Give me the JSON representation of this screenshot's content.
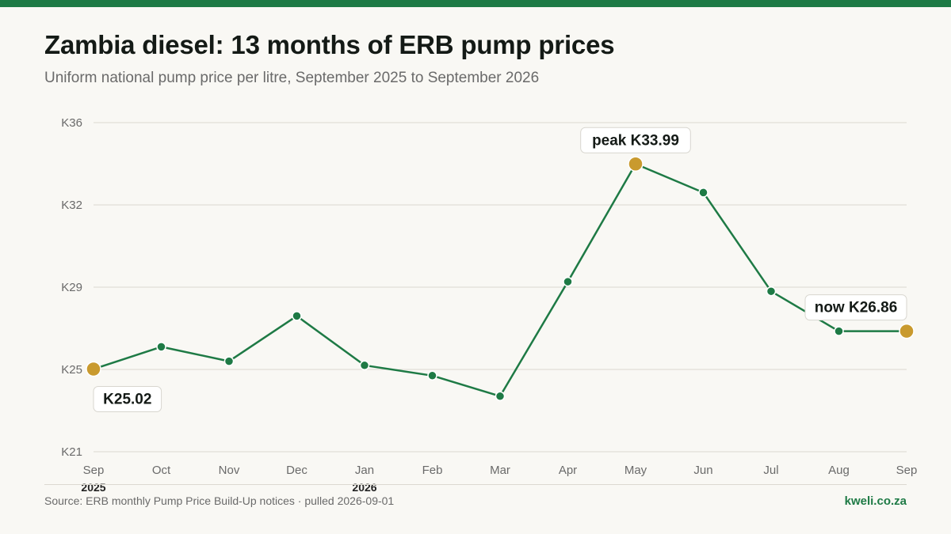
{
  "header": {
    "title": "Zambia diesel: 13 months of ERB pump prices",
    "subtitle": "Uniform national pump price per litre, September 2025 to September 2026"
  },
  "footer": {
    "source": "Source: ERB monthly Pump Price Build-Up notices · pulled 2026-09-01",
    "brand": "kweli.co.za"
  },
  "colors": {
    "line": "#1e7a45",
    "highlight": "#c99a2e",
    "grid": "#dcd9d0",
    "axis_text": "#6a6a6a"
  },
  "chart_data": {
    "type": "line",
    "title": "Zambia diesel: 13 months of ERB pump prices",
    "subtitle": "Uniform national pump price per litre, September 2025 to September 2026",
    "categories": [
      "Sep",
      "Oct",
      "Nov",
      "Dec",
      "Jan",
      "Feb",
      "Mar",
      "Apr",
      "May",
      "Jun",
      "Jul",
      "Aug",
      "Sep"
    ],
    "year_labels": [
      {
        "index": 0,
        "label": "2025"
      },
      {
        "index": 4,
        "label": "2026"
      }
    ],
    "series": [
      {
        "values": [
          25.02,
          26.1,
          25.4,
          27.6,
          25.2,
          24.7,
          23.7,
          29.2,
          33.99,
          32.6,
          28.8,
          26.86,
          26.86
        ]
      }
    ],
    "yticks": [
      21,
      25,
      29,
      32,
      36
    ],
    "ytick_labels": [
      "K21",
      "K25",
      "K29",
      "K32",
      "K36"
    ],
    "ylim": [
      21,
      36
    ],
    "grid": true,
    "annotations": [
      {
        "index": 0,
        "label": "K25.02",
        "position": "below"
      },
      {
        "index": 8,
        "label": "peak K33.99",
        "position": "above"
      },
      {
        "index": 12,
        "label": "now K26.86",
        "position": "above-left"
      }
    ],
    "highlight_points": [
      0,
      8,
      12
    ]
  }
}
